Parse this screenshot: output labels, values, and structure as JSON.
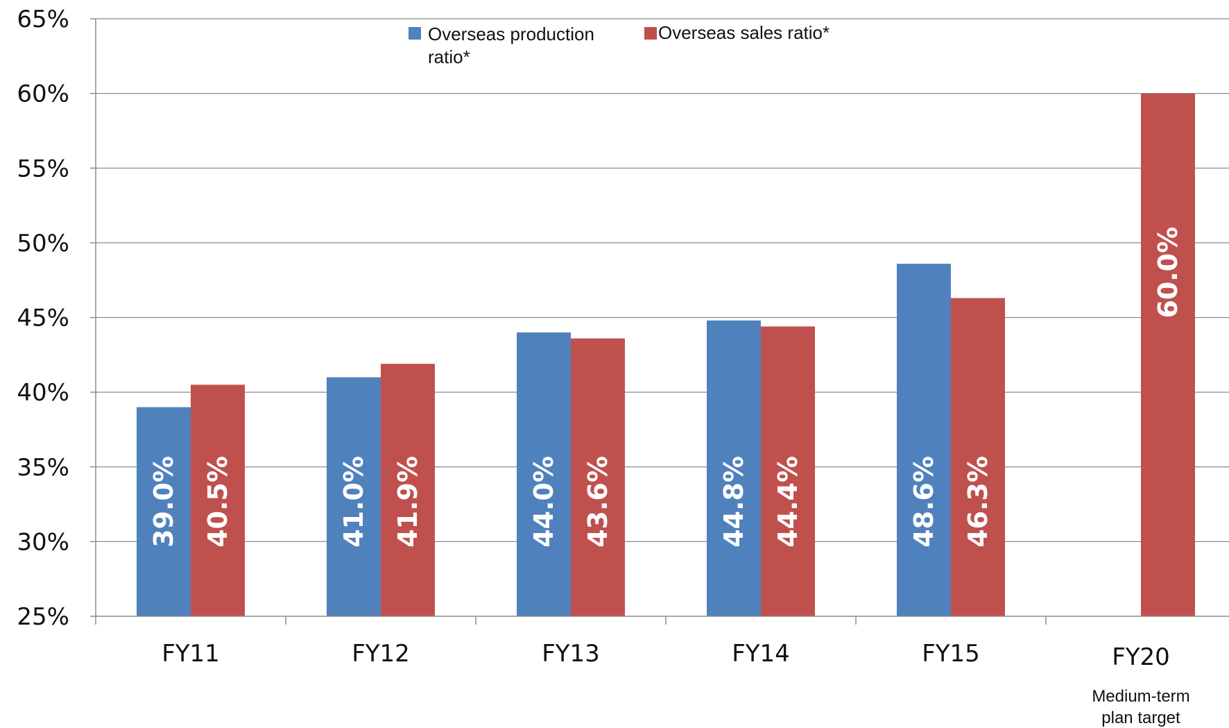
{
  "chart_data": {
    "type": "bar",
    "categories": [
      "FY11",
      "FY12",
      "FY13",
      "FY14",
      "FY15",
      "FY20"
    ],
    "category_sublabels": [
      "",
      "",
      "",
      "",
      "",
      "Medium-term\nplan target"
    ],
    "series": [
      {
        "name": "Overseas production ratio*",
        "color": "#4f81bd",
        "values": [
          39.0,
          41.0,
          44.0,
          44.8,
          48.6,
          null
        ],
        "labels": [
          "39.0%",
          "41.0%",
          "44.0%",
          "44.8%",
          "48.6%",
          ""
        ]
      },
      {
        "name": "Overseas sales ratio*",
        "color": "#c0504d",
        "values": [
          40.5,
          41.9,
          43.6,
          44.4,
          46.3,
          60.0
        ],
        "labels": [
          "40.5%",
          "41.9%",
          "43.6%",
          "44.4%",
          "46.3%",
          "60.0%"
        ]
      }
    ],
    "ylim": [
      25,
      65
    ],
    "yticks": [
      25,
      30,
      35,
      40,
      45,
      50,
      55,
      60,
      65
    ],
    "ytick_labels": [
      "25%",
      "30%",
      "35%",
      "40%",
      "45%",
      "50%",
      "55%",
      "60%",
      "65%"
    ],
    "legend": {
      "placement": "top-center",
      "entries": [
        [
          "Overseas production",
          "ratio*"
        ],
        [
          "Overseas sales ratio*"
        ]
      ]
    },
    "grid": true,
    "title": "",
    "xlabel": "",
    "ylabel": ""
  }
}
